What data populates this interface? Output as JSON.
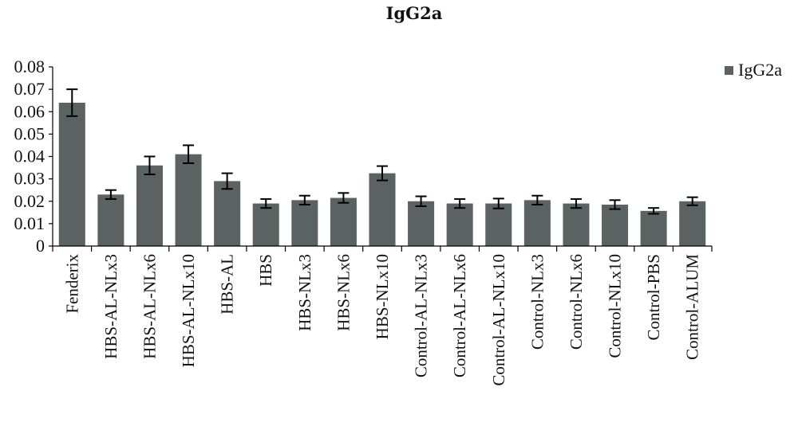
{
  "chart_data": {
    "type": "bar",
    "title": "IgG2a",
    "xlabel": "",
    "ylabel": "",
    "ylim": [
      0,
      0.08
    ],
    "yticks": [
      "0",
      "0.01",
      "0.02",
      "0.03",
      "0.04",
      "0.05",
      "0.06",
      "0.07",
      "0.08"
    ],
    "grid": false,
    "legend_position": "top-right",
    "bar_color": "#5a6262",
    "categories": [
      "Fenderix",
      "HBS-AL-NLx3",
      "HBS-AL-NLx6",
      "HBS-AL-NLx10",
      "HBS-AL",
      "HBS",
      "HBS-NLx3",
      "HBS-NLx6",
      "HBS-NLx10",
      "Control-AL-NLx3",
      "Control-AL-NLx6",
      "Control-AL-NLx10",
      "Control-NLx3",
      "Control-NLx6",
      "Control-NLx10",
      "Control-PBS",
      "Control-ALUM"
    ],
    "series": [
      {
        "name": "IgG2a",
        "values": [
          0.064,
          0.023,
          0.036,
          0.041,
          0.029,
          0.019,
          0.0205,
          0.0215,
          0.0325,
          0.02,
          0.019,
          0.019,
          0.0205,
          0.019,
          0.0185,
          0.0157,
          0.02
        ],
        "errors": [
          0.006,
          0.002,
          0.004,
          0.004,
          0.0035,
          0.002,
          0.002,
          0.0022,
          0.0032,
          0.0022,
          0.002,
          0.0022,
          0.002,
          0.002,
          0.002,
          0.0013,
          0.0018
        ]
      }
    ]
  }
}
